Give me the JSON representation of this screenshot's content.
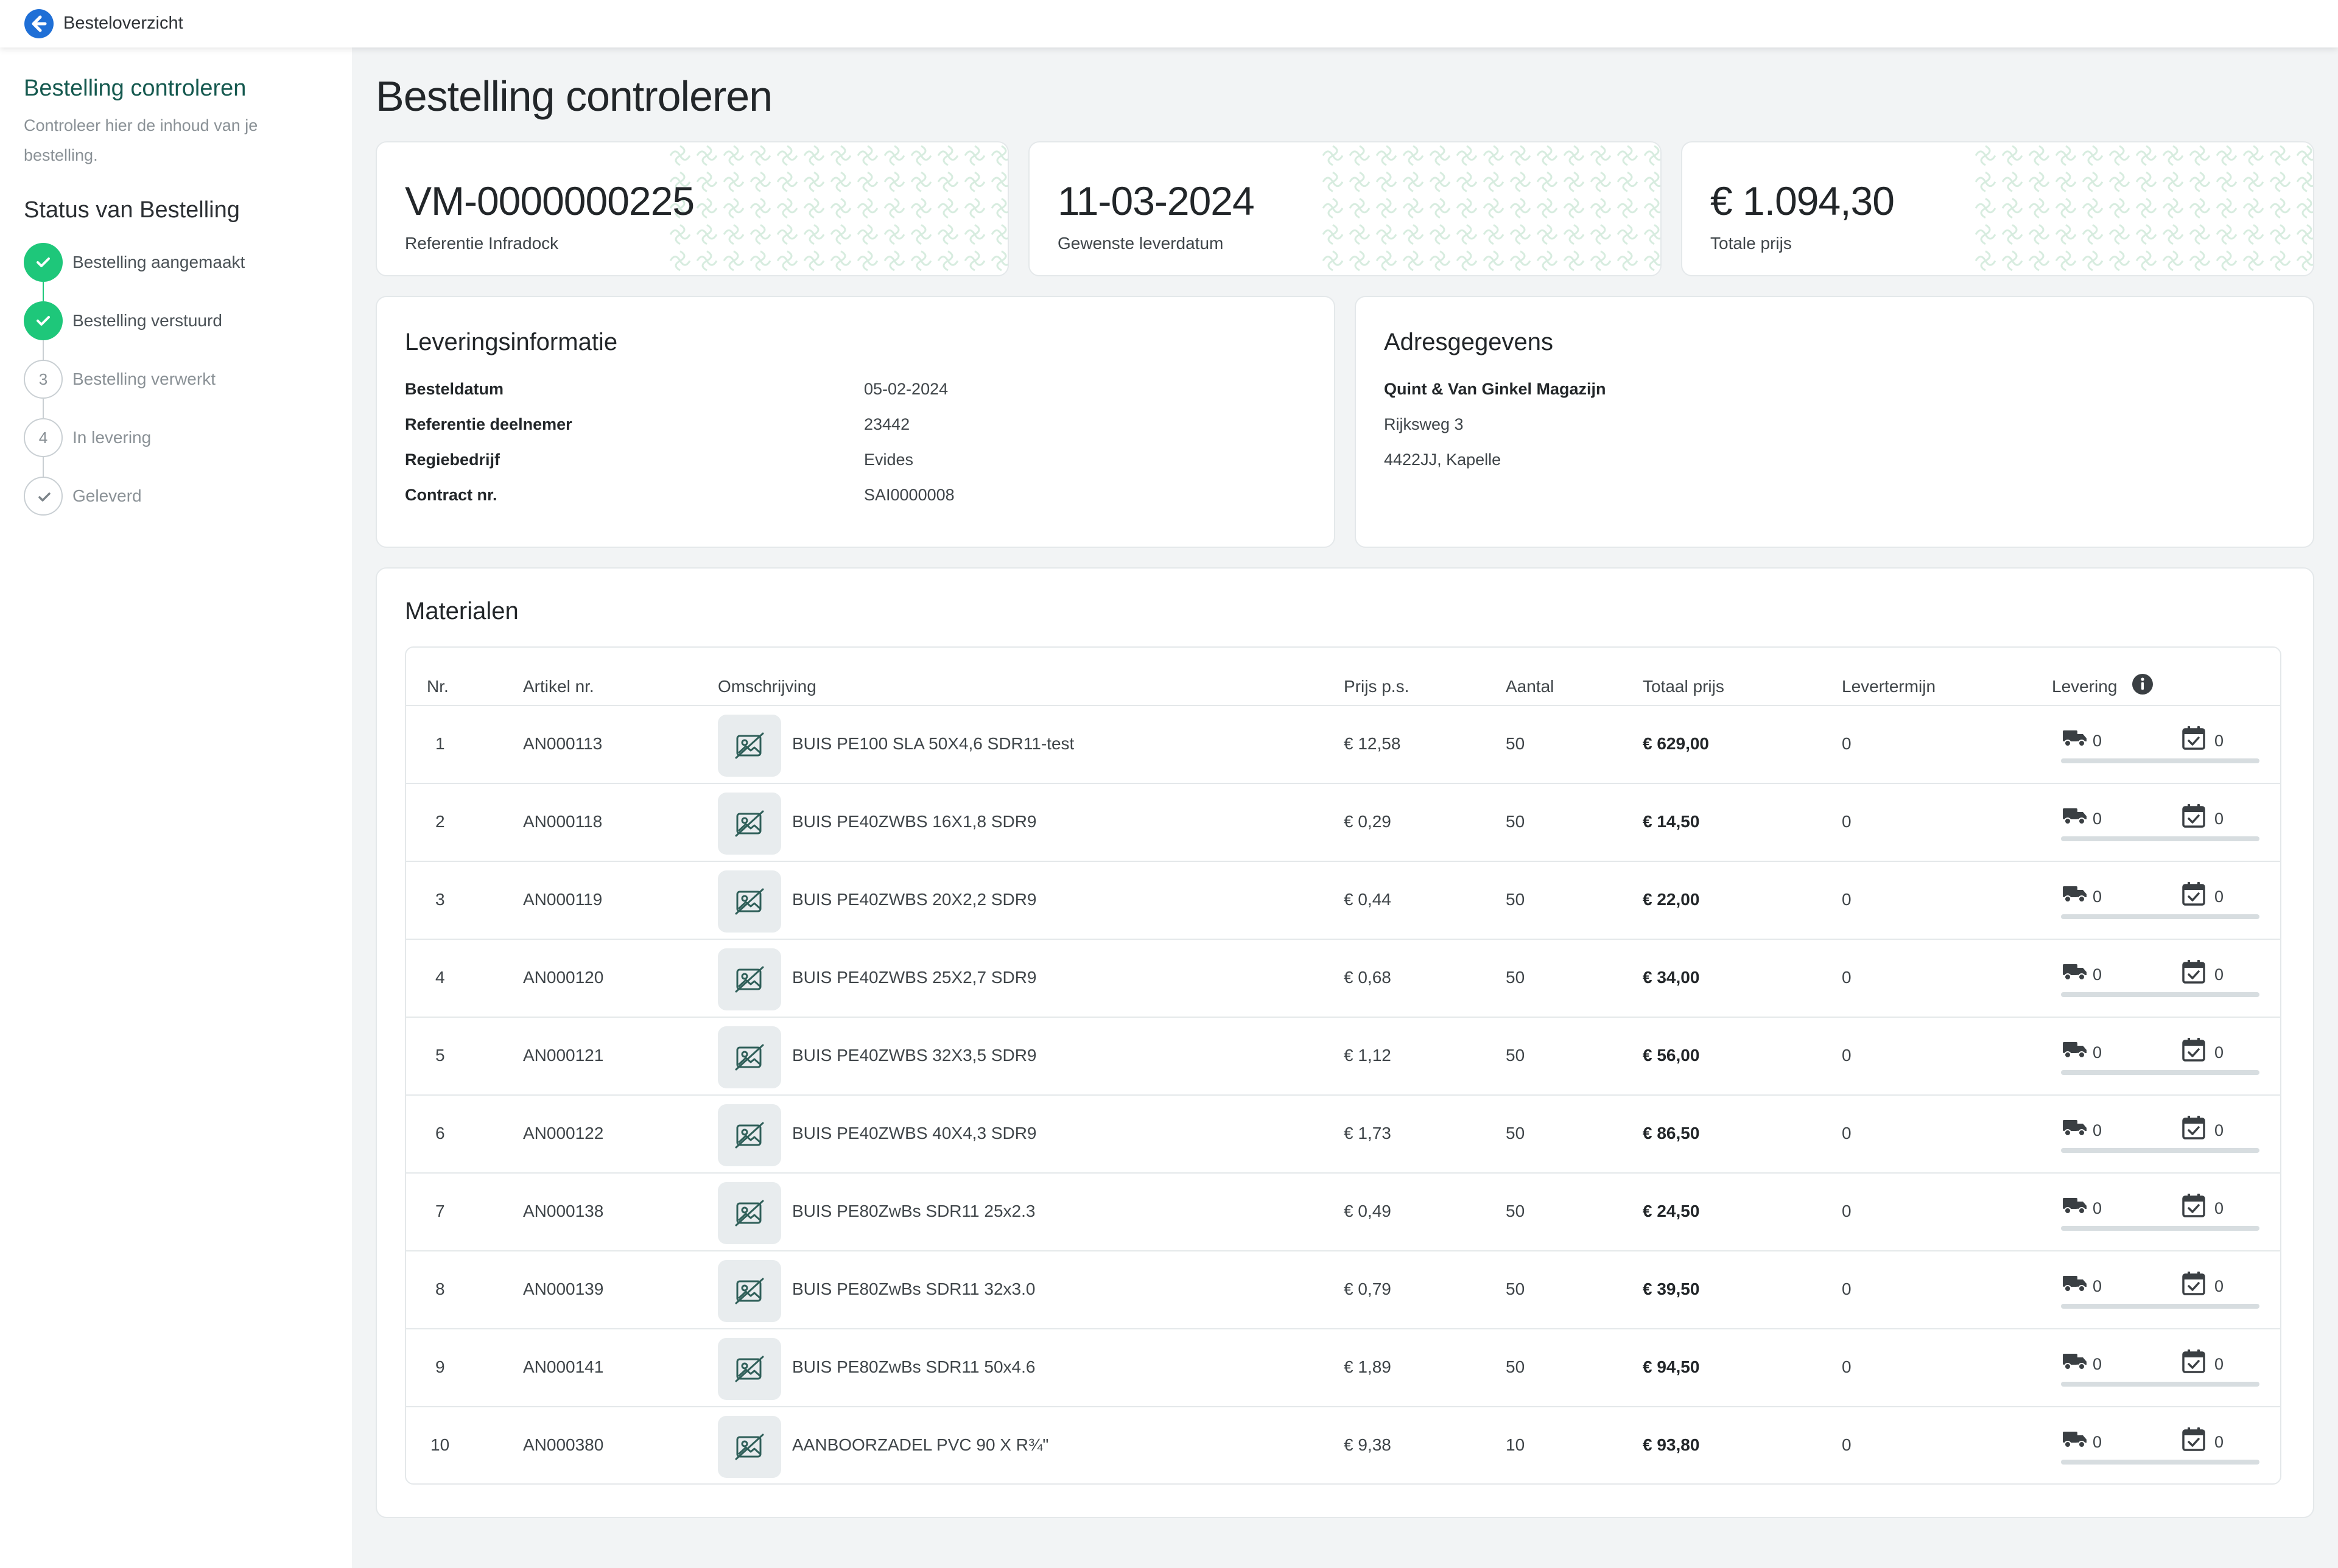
{
  "topbar": {
    "back_label": "Besteloverzicht"
  },
  "sidebar": {
    "title": "Bestelling controleren",
    "description": "Controleer hier de inhoud van je bestelling.",
    "status_title": "Status van Bestelling",
    "steps": [
      {
        "marker": "",
        "label": "Bestelling aangemaakt",
        "state": "done"
      },
      {
        "marker": "",
        "label": "Bestelling verstuurd",
        "state": "done"
      },
      {
        "marker": "3",
        "label": "Bestelling verwerkt",
        "state": "todo"
      },
      {
        "marker": "4",
        "label": "In levering",
        "state": "todo"
      },
      {
        "marker": "",
        "label": "Geleverd",
        "state": "todo"
      }
    ]
  },
  "main": {
    "title": "Bestelling controleren",
    "stats": [
      {
        "value": "VM-0000000225",
        "label": "Referentie Infradock"
      },
      {
        "value": "11-03-2024",
        "label": "Gewenste leverdatum"
      },
      {
        "value": "€ 1.094,30",
        "label": "Totale prijs"
      }
    ],
    "delivery": {
      "title": "Leveringsinformatie",
      "rows": [
        {
          "key": "Besteldatum",
          "value": "05-02-2024"
        },
        {
          "key": "Referentie deelnemer",
          "value": "23442"
        },
        {
          "key": "Regiebedrijf",
          "value": "Evides"
        },
        {
          "key": "Contract nr.",
          "value": "SAI0000008"
        }
      ]
    },
    "address": {
      "title": "Adresgegevens",
      "name": "Quint & Van Ginkel Magazijn",
      "street": "Rijksweg 3",
      "city": "4422JJ, Kapelle"
    },
    "materials": {
      "title": "Materialen",
      "headers": {
        "nr": "Nr.",
        "article": "Artikel nr.",
        "description": "Omschrijving",
        "price": "Prijs p.s.",
        "qty": "Aantal",
        "total": "Totaal prijs",
        "term": "Levertermijn",
        "delivery": "Levering"
      },
      "rows": [
        {
          "nr": "1",
          "article": "AN000113",
          "description": "BUIS PE100 SLA 50X4,6 SDR11-test",
          "price": "€ 12,58",
          "qty": "50",
          "total": "€ 629,00",
          "term": "0",
          "delivered": "0",
          "planned": "0"
        },
        {
          "nr": "2",
          "article": "AN000118",
          "description": "BUIS PE40ZWBS 16X1,8 SDR9",
          "price": "€ 0,29",
          "qty": "50",
          "total": "€ 14,50",
          "term": "0",
          "delivered": "0",
          "planned": "0"
        },
        {
          "nr": "3",
          "article": "AN000119",
          "description": "BUIS PE40ZWBS 20X2,2 SDR9",
          "price": "€ 0,44",
          "qty": "50",
          "total": "€ 22,00",
          "term": "0",
          "delivered": "0",
          "planned": "0"
        },
        {
          "nr": "4",
          "article": "AN000120",
          "description": "BUIS PE40ZWBS 25X2,7 SDR9",
          "price": "€ 0,68",
          "qty": "50",
          "total": "€ 34,00",
          "term": "0",
          "delivered": "0",
          "planned": "0"
        },
        {
          "nr": "5",
          "article": "AN000121",
          "description": "BUIS PE40ZWBS 32X3,5 SDR9",
          "price": "€ 1,12",
          "qty": "50",
          "total": "€ 56,00",
          "term": "0",
          "delivered": "0",
          "planned": "0"
        },
        {
          "nr": "6",
          "article": "AN000122",
          "description": "BUIS PE40ZWBS 40X4,3 SDR9",
          "price": "€ 1,73",
          "qty": "50",
          "total": "€ 86,50",
          "term": "0",
          "delivered": "0",
          "planned": "0"
        },
        {
          "nr": "7",
          "article": "AN000138",
          "description": "BUIS PE80ZwBs SDR11 25x2.3",
          "price": "€ 0,49",
          "qty": "50",
          "total": "€ 24,50",
          "term": "0",
          "delivered": "0",
          "planned": "0"
        },
        {
          "nr": "8",
          "article": "AN000139",
          "description": "BUIS PE80ZwBs SDR11 32x3.0",
          "price": "€ 0,79",
          "qty": "50",
          "total": "€ 39,50",
          "term": "0",
          "delivered": "0",
          "planned": "0"
        },
        {
          "nr": "9",
          "article": "AN000141",
          "description": "BUIS PE80ZwBs SDR11 50x4.6",
          "price": "€ 1,89",
          "qty": "50",
          "total": "€ 94,50",
          "term": "0",
          "delivered": "0",
          "planned": "0"
        },
        {
          "nr": "10",
          "article": "AN000380",
          "description": "AANBOORZADEL PVC 90 X R¾\"",
          "price": "€ 9,38",
          "qty": "10",
          "total": "€ 93,80",
          "term": "0",
          "delivered": "0",
          "planned": "0"
        }
      ]
    }
  },
  "colors": {
    "accent": "#15594f",
    "success": "#1ec77a",
    "link": "#1f6fd6",
    "background": "#f2f4f5"
  },
  "icons": {
    "back": "arrow-left-circle-icon",
    "check": "check-icon",
    "info": "info-circle-icon",
    "truck": "truck-icon",
    "calendar": "calendar-check-icon",
    "thumb": "image-off-icon"
  }
}
